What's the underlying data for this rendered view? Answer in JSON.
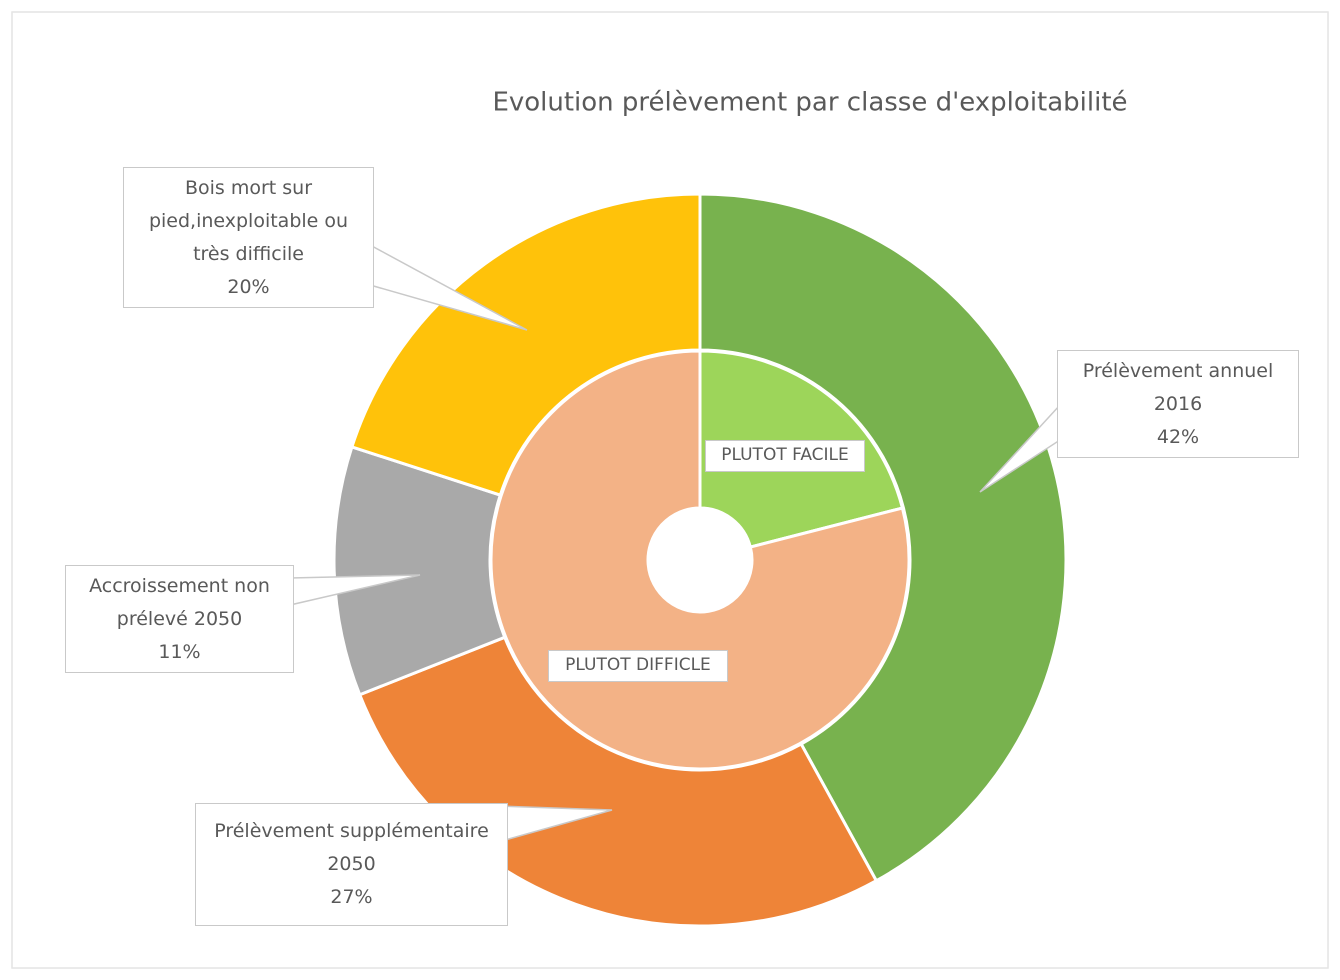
{
  "chart_data": {
    "type": "donut",
    "title": "Evolution prélèvement par classe d'exploitabilité",
    "rings": [
      {
        "categories": [
          "Prélèvement annuel 2016",
          "Prélèvement supplémentaire 2050",
          "Accroissement non prélevé 2050",
          "Bois mort sur pied,inexploitable ou très difficile"
        ],
        "values": [
          42,
          27,
          11,
          20
        ],
        "value_labels": [
          "42%",
          "27%",
          "11%",
          "20%"
        ],
        "colors": [
          "#78b24e",
          "#ee8438",
          "#a9a9a9",
          "#ffc20a"
        ]
      },
      {
        "categories": [
          "PLUTOT FACILE",
          "PLUTOT DIFFICLE"
        ],
        "values": [
          21,
          79
        ],
        "colors": [
          "#9dd55a",
          "#f3b286"
        ]
      }
    ]
  }
}
